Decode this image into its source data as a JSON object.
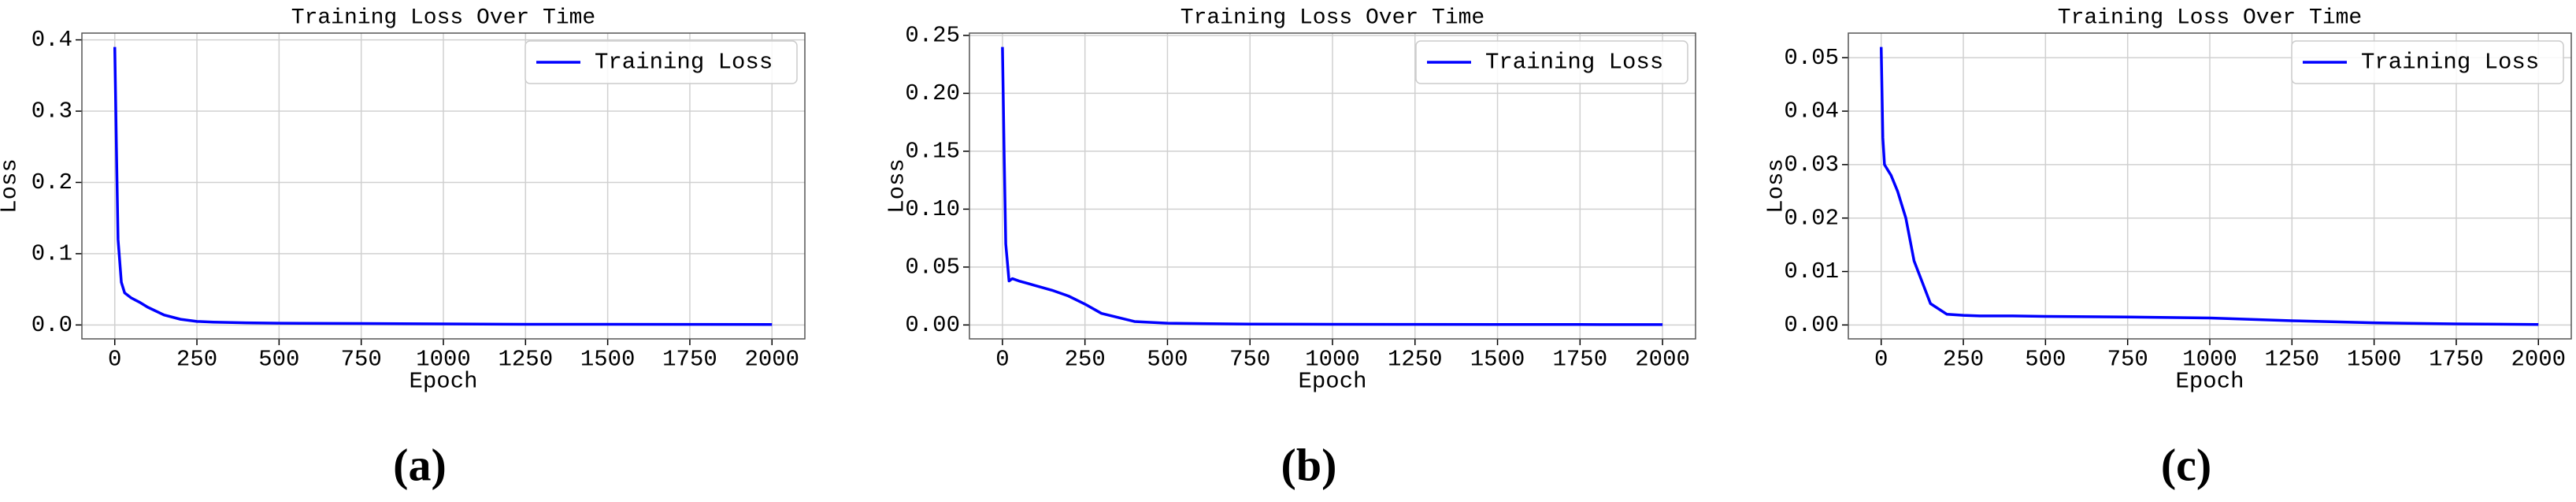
{
  "chart_data": [
    {
      "type": "line",
      "title": "Training Loss Over Time",
      "x_label": "Epoch",
      "y_label": "Loss",
      "caption": "(a)",
      "x": [
        0,
        5,
        10,
        20,
        30,
        50,
        75,
        100,
        150,
        200,
        250,
        300,
        400,
        500,
        750,
        1000,
        1250,
        1500,
        1750,
        2000
      ],
      "series": [
        {
          "name": "Training Loss",
          "color": "#0000ff",
          "values": [
            0.39,
            0.25,
            0.12,
            0.06,
            0.045,
            0.038,
            0.032,
            0.025,
            0.014,
            0.008,
            0.005,
            0.004,
            0.003,
            0.0025,
            0.002,
            0.0015,
            0.001,
            0.001,
            0.0008,
            0.0007
          ]
        }
      ],
      "xlim": [
        -100,
        2100
      ],
      "xticks": [
        0,
        250,
        500,
        750,
        1000,
        1250,
        1500,
        1750,
        2000
      ],
      "ylim": [
        -0.0195,
        0.4095
      ],
      "yticks": [
        {
          "value": 0,
          "label": "0.0"
        },
        0.1,
        0.2,
        0.3,
        0.4
      ],
      "grid": true,
      "legend": "upper right"
    },
    {
      "type": "line",
      "title": "Training Loss Over Time",
      "x_label": "Epoch",
      "y_label": "Loss",
      "caption": "(b)",
      "x": [
        0,
        5,
        10,
        20,
        30,
        50,
        75,
        100,
        150,
        200,
        250,
        300,
        400,
        500,
        750,
        1000,
        1250,
        1500,
        1750,
        2000
      ],
      "series": [
        {
          "name": "Training Loss",
          "color": "#0000ff",
          "values": [
            0.24,
            0.15,
            0.07,
            0.038,
            0.04,
            0.038,
            0.036,
            0.034,
            0.03,
            0.025,
            0.018,
            0.01,
            0.003,
            0.0015,
            0.0008,
            0.0006,
            0.0005,
            0.0004,
            0.0004,
            0.0003
          ]
        }
      ],
      "xlim": [
        -100,
        2100
      ],
      "xticks": [
        0,
        250,
        500,
        750,
        1000,
        1250,
        1500,
        1750,
        2000
      ],
      "ylim": [
        -0.012,
        0.252
      ],
      "yticks": [
        {
          "value": 0,
          "label": "0.00"
        },
        0.05,
        {
          "value": 0.1,
          "label": "0.10"
        },
        0.15,
        {
          "value": 0.2,
          "label": "0.20"
        },
        0.25
      ],
      "grid": true,
      "legend": "upper right"
    },
    {
      "type": "line",
      "title": "Training Loss Over Time",
      "x_label": "Epoch",
      "y_label": "Loss",
      "caption": "(c)",
      "x": [
        0,
        5,
        10,
        20,
        30,
        50,
        75,
        100,
        150,
        200,
        250,
        300,
        400,
        500,
        750,
        1000,
        1250,
        1500,
        1750,
        2000
      ],
      "series": [
        {
          "name": "Training Loss",
          "color": "#0000ff",
          "values": [
            0.052,
            0.035,
            0.03,
            0.029,
            0.028,
            0.025,
            0.02,
            0.012,
            0.004,
            0.002,
            0.0018,
            0.0017,
            0.0017,
            0.0016,
            0.0015,
            0.0013,
            0.0008,
            0.0004,
            0.0002,
            0.0001
          ]
        }
      ],
      "xlim": [
        -100,
        2100
      ],
      "xticks": [
        0,
        250,
        500,
        750,
        1000,
        1250,
        1500,
        1750,
        2000
      ],
      "ylim": [
        -0.0026,
        0.0546
      ],
      "yticks": [
        {
          "value": 0,
          "label": "0.00"
        },
        0.01,
        0.02,
        0.03,
        0.04,
        0.05
      ],
      "grid": true,
      "legend": "upper right"
    }
  ]
}
